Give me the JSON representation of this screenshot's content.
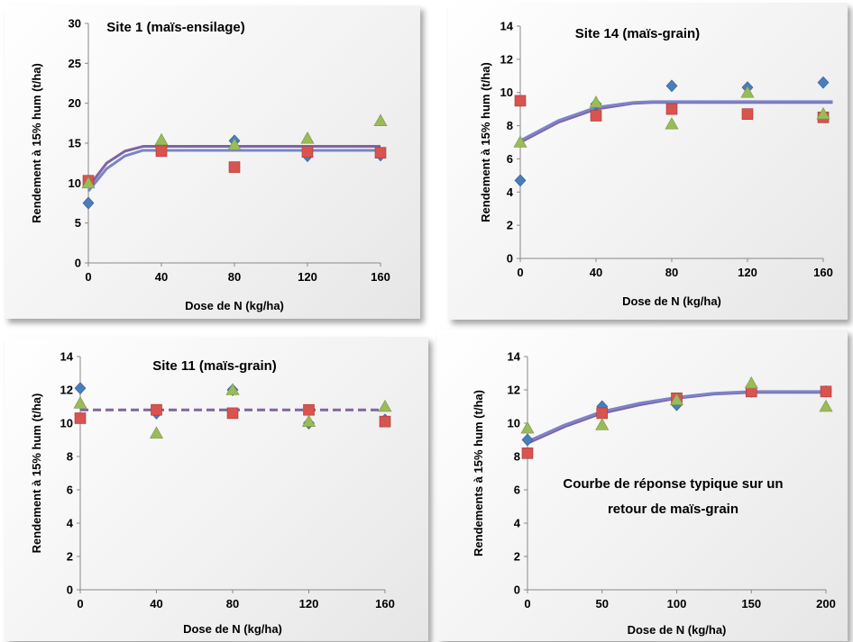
{
  "colors": {
    "series_blue": "#4a7ebb",
    "series_red": "#d9534f",
    "series_green": "#9bbb59",
    "fit_purple": "#8064a2",
    "fit_blue": "#7b84c9"
  },
  "chart_data": [
    {
      "type": "scatter",
      "title": "Site 1 (maïs-ensilage)",
      "xlabel": "Dose de N (kg/ha)",
      "ylabel": "Rendement à 15% hum (t/ha)",
      "xlim": [
        0,
        160
      ],
      "ylim": [
        0,
        30
      ],
      "xticks": [
        "0",
        "40",
        "80",
        "120",
        "160"
      ],
      "yticks": [
        "0",
        "5",
        "10",
        "15",
        "20",
        "25",
        "30"
      ],
      "grid": false,
      "series": [
        {
          "marker": "diamond",
          "color": "#4a7ebb",
          "x": [
            0,
            40,
            80,
            120,
            160
          ],
          "y": [
            7.5,
            14.4,
            15.3,
            13.4,
            13.5
          ]
        },
        {
          "marker": "square",
          "color": "#d9534f",
          "x": [
            0,
            40,
            80,
            120,
            160
          ],
          "y": [
            10.3,
            14.0,
            12.0,
            13.9,
            13.8
          ]
        },
        {
          "marker": "triangle",
          "color": "#9bbb59",
          "x": [
            0,
            40,
            80,
            120,
            160
          ],
          "y": [
            10.0,
            15.4,
            14.8,
            15.6,
            17.8
          ]
        }
      ],
      "fits": [
        {
          "style": "solid",
          "color": "#8064a2",
          "x": [
            0,
            10,
            20,
            30,
            160
          ],
          "y": [
            9.5,
            12.5,
            14.0,
            14.6,
            14.6
          ]
        },
        {
          "style": "solid",
          "color": "#7b84c9",
          "x": [
            0,
            10,
            20,
            30,
            160
          ],
          "y": [
            9.0,
            11.8,
            13.4,
            14.1,
            14.1
          ]
        }
      ]
    },
    {
      "type": "scatter",
      "title": "Site 14 (maïs-grain)",
      "xlabel": "Dose de N (kg/ha)",
      "ylabel": "Rendement à 15% hum (t/ha)",
      "xlim": [
        0,
        160
      ],
      "ylim": [
        0,
        14
      ],
      "xticks": [
        "0",
        "40",
        "80",
        "120",
        "160"
      ],
      "yticks": [
        "0",
        "2",
        "4",
        "6",
        "8",
        "10",
        "12",
        "14"
      ],
      "grid": false,
      "series": [
        {
          "marker": "diamond",
          "color": "#4a7ebb",
          "x": [
            0,
            40,
            80,
            120,
            160
          ],
          "y": [
            4.7,
            9.3,
            10.4,
            10.3,
            10.6
          ]
        },
        {
          "marker": "square",
          "color": "#d9534f",
          "x": [
            0,
            40,
            80,
            120,
            160
          ],
          "y": [
            9.5,
            8.6,
            9.0,
            8.7,
            8.5
          ]
        },
        {
          "marker": "triangle",
          "color": "#9bbb59",
          "x": [
            0,
            40,
            80,
            120,
            160
          ],
          "y": [
            7.0,
            9.4,
            8.1,
            10.0,
            8.7
          ]
        }
      ],
      "fits": [
        {
          "style": "solid",
          "color": "#8064a2",
          "x": [
            0,
            20,
            40,
            60,
            70,
            165
          ],
          "y": [
            7.0,
            8.2,
            9.0,
            9.35,
            9.4,
            9.4
          ]
        },
        {
          "style": "solid",
          "color": "#7b84c9",
          "x": [
            0,
            20,
            40,
            60,
            70,
            165
          ],
          "y": [
            7.1,
            8.3,
            9.1,
            9.4,
            9.45,
            9.45
          ]
        }
      ]
    },
    {
      "type": "scatter",
      "title": "Site 11 (maïs-grain)",
      "xlabel": "Dose de N (kg/ha)",
      "ylabel": "Rendement à 15% hum (t/ha)",
      "xlim": [
        0,
        160
      ],
      "ylim": [
        0,
        14
      ],
      "xticks": [
        "0",
        "40",
        "80",
        "120",
        "160"
      ],
      "yticks": [
        "0",
        "2",
        "4",
        "6",
        "8",
        "10",
        "12",
        "14"
      ],
      "grid": false,
      "series": [
        {
          "marker": "diamond",
          "color": "#4a7ebb",
          "x": [
            0,
            40,
            80,
            120,
            160
          ],
          "y": [
            12.1,
            10.6,
            12.0,
            10.0,
            10.2
          ]
        },
        {
          "marker": "square",
          "color": "#d9534f",
          "x": [
            0,
            40,
            80,
            120,
            160
          ],
          "y": [
            10.3,
            10.8,
            10.6,
            10.8,
            10.1
          ]
        },
        {
          "marker": "triangle",
          "color": "#9bbb59",
          "x": [
            0,
            40,
            80,
            120,
            160
          ],
          "y": [
            11.2,
            9.4,
            12.0,
            10.1,
            11.0
          ]
        }
      ],
      "fits": [
        {
          "style": "dashed",
          "color": "#8064a2",
          "x": [
            0,
            160
          ],
          "y": [
            10.8,
            10.8
          ]
        }
      ]
    },
    {
      "type": "scatter",
      "title": "",
      "annotation": "Courbe de réponse typique sur un retour de maïs-grain",
      "annotation_lines": [
        "Courbe de réponse typique sur un",
        "retour de maïs-grain"
      ],
      "xlabel": "Dose de N (kg/ha)",
      "ylabel": "Rendements à 15% hum (t/ha)",
      "xlim": [
        0,
        200
      ],
      "ylim": [
        0,
        14
      ],
      "xticks": [
        "0",
        "50",
        "100",
        "150",
        "200"
      ],
      "yticks": [
        "0",
        "2",
        "4",
        "6",
        "8",
        "10",
        "12",
        "14"
      ],
      "grid": false,
      "series": [
        {
          "marker": "diamond",
          "color": "#4a7ebb",
          "x": [
            0,
            50,
            100,
            150,
            200
          ],
          "y": [
            9.0,
            11.0,
            11.1,
            11.9,
            11.9
          ]
        },
        {
          "marker": "square",
          "color": "#d9534f",
          "x": [
            0,
            50,
            100,
            150,
            200
          ],
          "y": [
            8.2,
            10.6,
            11.5,
            11.9,
            11.9
          ]
        },
        {
          "marker": "triangle",
          "color": "#9bbb59",
          "x": [
            0,
            50,
            100,
            150,
            200
          ],
          "y": [
            9.7,
            9.9,
            11.4,
            12.4,
            11.0
          ]
        }
      ],
      "fits": [
        {
          "style": "solid",
          "color": "#8064a2",
          "x": [
            0,
            25,
            50,
            75,
            100,
            125,
            150,
            200
          ],
          "y": [
            8.8,
            9.8,
            10.6,
            11.1,
            11.5,
            11.75,
            11.85,
            11.85
          ]
        },
        {
          "style": "solid",
          "color": "#7b84c9",
          "x": [
            0,
            25,
            50,
            75,
            100,
            125,
            150,
            200
          ],
          "y": [
            8.9,
            9.9,
            10.7,
            11.2,
            11.55,
            11.8,
            11.9,
            11.9
          ]
        }
      ]
    }
  ]
}
